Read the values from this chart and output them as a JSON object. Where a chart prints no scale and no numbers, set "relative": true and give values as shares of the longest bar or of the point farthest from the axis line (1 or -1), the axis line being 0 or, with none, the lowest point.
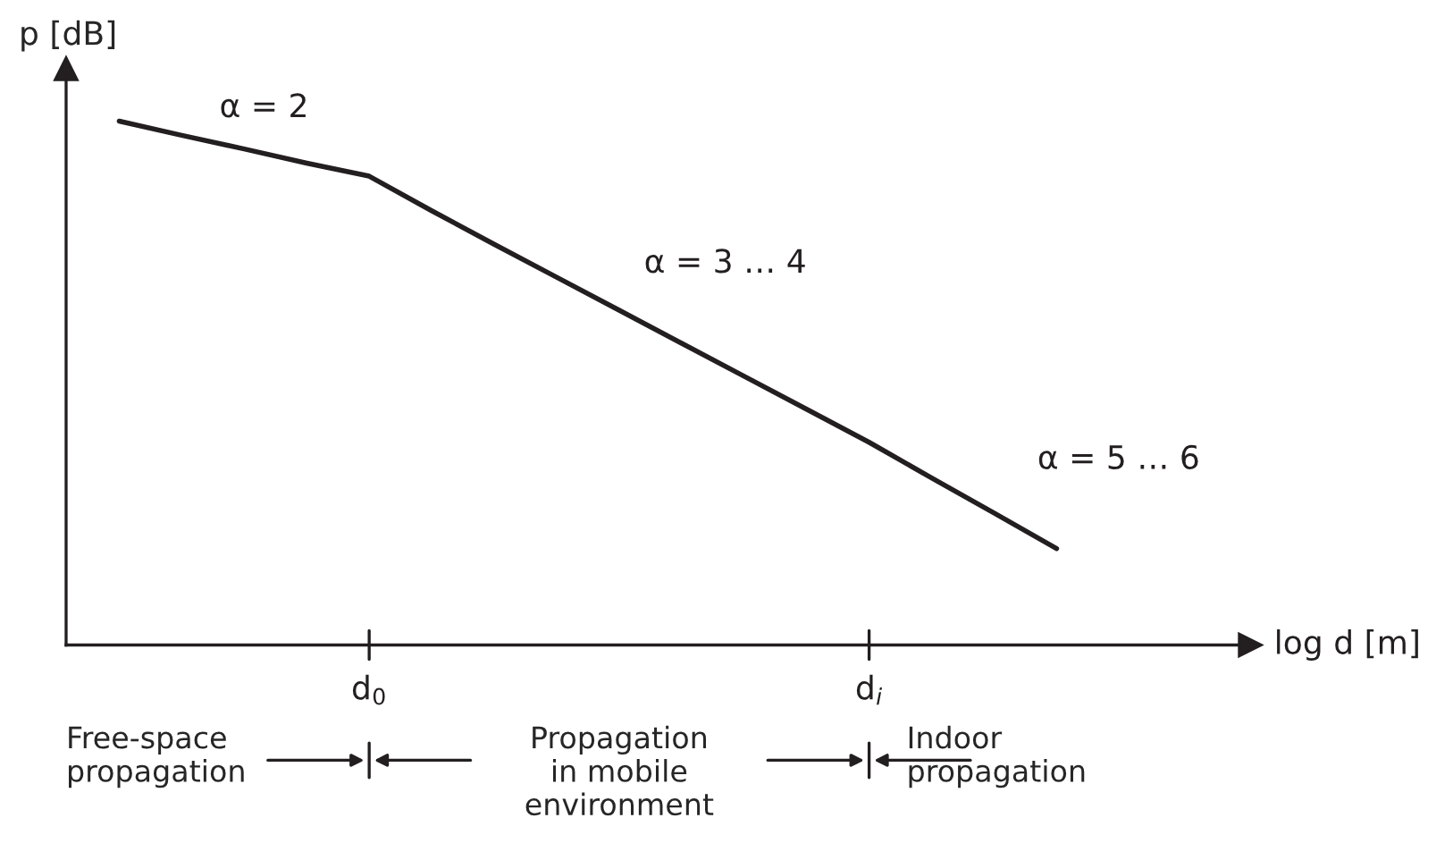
{
  "chart_data": {
    "type": "line",
    "relative": true,
    "ylabel": "p [dB]",
    "categories": [
      null,
      null,
      null,
      null,
      "d$_{0}$",
      null,
      null,
      null,
      null,
      null,
      null,
      null,
      "d$_{i}$",
      null,
      null,
      null
    ],
    "series": [
      {
        "color": "#231f20",
        "values": [
          1.0,
          0.973,
          0.947,
          0.92,
          0.895,
          0.829,
          0.765,
          0.702,
          0.639,
          0.576,
          0.513,
          0.45,
          0.387,
          0.319,
          0.252,
          0.184
        ]
      }
    ],
    "annotations": [
      "α = 2",
      "α = 3 … 4",
      "α = 5 … 6",
      "Free-space\npropagation",
      "Propagation\nin mobile\nenvironment",
      "Indoor\npropagation",
      "log d [m]"
    ],
    "grid": false,
    "legend": false,
    "marker": "none",
    "line_style": "solid"
  }
}
